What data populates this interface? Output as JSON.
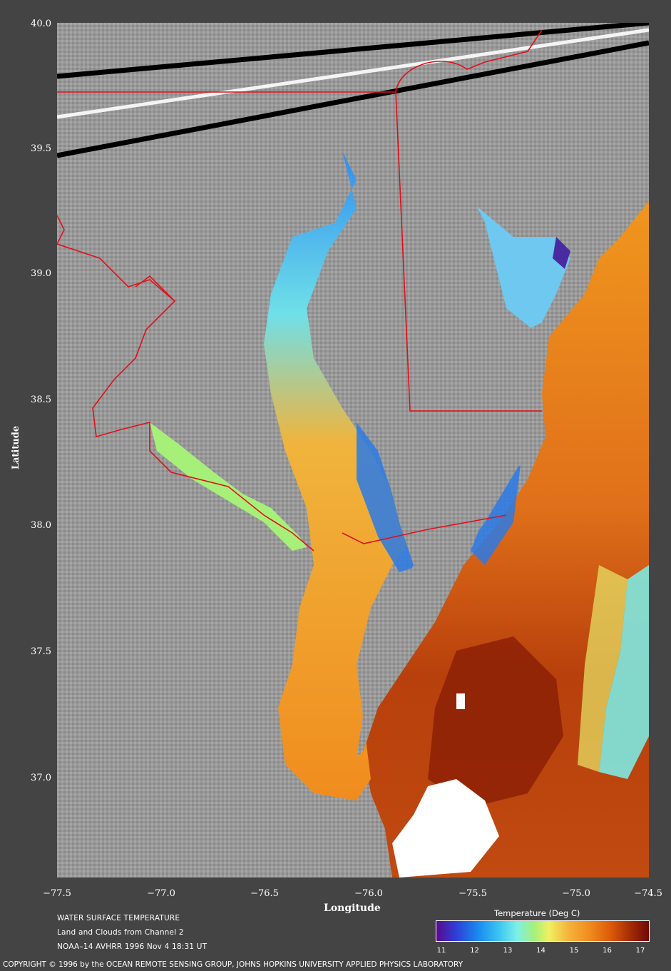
{
  "map": {
    "lat_ticks": [
      "40.0",
      "39.5",
      "39.0",
      "38.5",
      "38.0",
      "37.5",
      "37.0"
    ],
    "lon_ticks": [
      "−77.5",
      "−77.0",
      "−76.5",
      "−76.0",
      "−75.5",
      "−75.0",
      "−74.5"
    ],
    "xlabel": "Longitude",
    "ylabel": "Latitude",
    "colors": {
      "land": "#9a9a9a",
      "bay_warm": "#f0941e",
      "ocean_hot": "#a8320a",
      "ocean_cool": "#7ee8e0",
      "cold_water": "#2f7ee8",
      "boundary": "#e0101a",
      "cloud": "#ffffff"
    }
  },
  "captions": {
    "line1": "WATER SURFACE TEMPERATURE",
    "line2": "Land and Clouds from Channel 2",
    "line3": "NOAA–14 AVHRR  1996 Nov  4 18:31 UT"
  },
  "colorbar": {
    "title": "Temperature (Deg C)",
    "ticks": [
      "11",
      "12",
      "13",
      "14",
      "15",
      "16",
      "17"
    ]
  },
  "copyright": "COPYRIGHT © 1996 by the OCEAN REMOTE SENSING GROUP, JOHNS HOPKINS UNIVERSITY APPLIED PHYSICS LABORATORY"
}
